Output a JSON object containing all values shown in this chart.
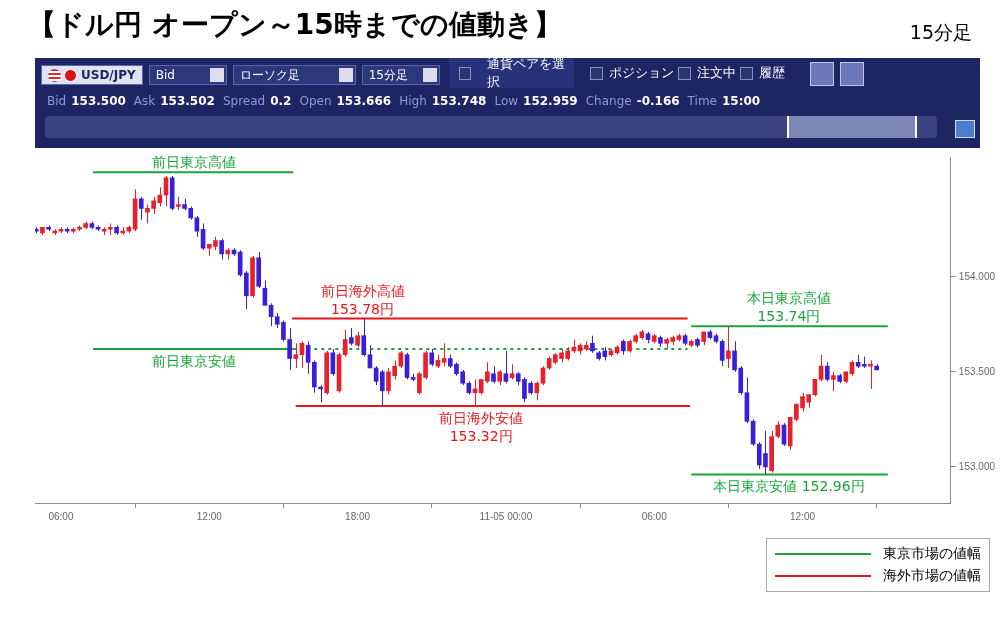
{
  "chart_data": {
    "type": "candlestick",
    "title": "【ドル円 オープン～15時までの値動き】",
    "subtitle": "15分足",
    "x": [
      "--11-04T05:00",
      "--11-04T05:15",
      "--11-04T05:30",
      "--11-04T05:45",
      "--11-04T06:00",
      "--11-04T06:15",
      "--11-04T06:30",
      "--11-04T06:45",
      "--11-04T07:00",
      "--11-04T07:15",
      "--11-04T07:30",
      "--11-04T07:45",
      "--11-04T08:00",
      "--11-04T08:15",
      "--11-04T08:30",
      "--11-04T08:45",
      "--11-04T09:00",
      "--11-04T09:15",
      "--11-04T09:30",
      "--11-04T09:45",
      "--11-04T10:00",
      "--11-04T10:15",
      "--11-04T10:30",
      "--11-04T10:45",
      "--11-04T11:00",
      "--11-04T11:15",
      "--11-04T11:30",
      "--11-04T11:45",
      "--11-04T12:00",
      "--11-04T12:15",
      "--11-04T12:30",
      "--11-04T12:45",
      "--11-04T13:00",
      "--11-04T13:15",
      "--11-04T13:30",
      "--11-04T13:45",
      "--11-04T14:00",
      "--11-04T14:15",
      "--11-04T14:30",
      "--11-04T14:45",
      "--11-04T15:00",
      "--11-04T15:15",
      "--11-04T15:30",
      "--11-04T15:45",
      "--11-04T16:00",
      "--11-04T16:15",
      "--11-04T16:30",
      "--11-04T16:45",
      "--11-04T17:00",
      "--11-04T17:15",
      "--11-04T17:30",
      "--11-04T17:45",
      "--11-04T18:00",
      "--11-04T18:15",
      "--11-04T18:30",
      "--11-04T18:45",
      "--11-04T19:00",
      "--11-04T19:15",
      "--11-04T19:30",
      "--11-04T19:45",
      "--11-04T20:00",
      "--11-04T20:15",
      "--11-04T20:30",
      "--11-04T20:45",
      "--11-04T21:00",
      "--11-04T21:15",
      "--11-04T21:30",
      "--11-04T21:45",
      "--11-04T22:00",
      "--11-04T22:15",
      "--11-04T22:30",
      "--11-04T22:45",
      "--11-04T23:00",
      "--11-04T23:15",
      "--11-04T23:30",
      "--11-04T23:45",
      "--11-05T00:00",
      "--11-05T00:15",
      "--11-05T00:30",
      "--11-05T00:45",
      "--11-05T01:00",
      "--11-05T01:15",
      "--11-05T01:30",
      "--11-05T01:45",
      "--11-05T02:00",
      "--11-05T02:15",
      "--11-05T02:30",
      "--11-05T02:45",
      "--11-05T03:00",
      "--11-05T03:15",
      "--11-05T03:30",
      "--11-05T03:45",
      "--11-05T04:00",
      "--11-05T04:15",
      "--11-05T04:30",
      "--11-05T04:45",
      "--11-05T05:00",
      "--11-05T05:15",
      "--11-05T05:30",
      "--11-05T05:45",
      "--11-05T06:00",
      "--11-05T06:15",
      "--11-05T06:30",
      "--11-05T06:45",
      "--11-05T07:00",
      "--11-05T07:15",
      "--11-05T07:30",
      "--11-05T07:45",
      "--11-05T08:00",
      "--11-05T08:15",
      "--11-05T08:30",
      "--11-05T08:45",
      "--11-05T09:00",
      "--11-05T09:15",
      "--11-05T09:30",
      "--11-05T09:45",
      "--11-05T10:00",
      "--11-05T10:15",
      "--11-05T10:30",
      "--11-05T10:45",
      "--11-05T11:00",
      "--11-05T11:15",
      "--11-05T11:30",
      "--11-05T11:45",
      "--11-05T12:00",
      "--11-05T12:15",
      "--11-05T12:30",
      "--11-05T12:45",
      "--11-05T13:00",
      "--11-05T13:15",
      "--11-05T13:30",
      "--11-05T13:45",
      "--11-05T14:00",
      "--11-05T14:15",
      "--11-05T14:30",
      "--11-05T14:45",
      "--11-05T15:00"
    ],
    "ohlc": [
      [
        154.25,
        154.26,
        154.23,
        154.24
      ],
      [
        154.23,
        154.26,
        154.22,
        154.26
      ],
      [
        154.26,
        154.27,
        154.24,
        154.25
      ],
      [
        154.23,
        154.25,
        154.22,
        154.24
      ],
      [
        154.24,
        154.26,
        154.23,
        154.25
      ],
      [
        154.25,
        154.26,
        154.23,
        154.24
      ],
      [
        154.24,
        154.26,
        154.23,
        154.25
      ],
      [
        154.25,
        154.27,
        154.24,
        154.26
      ],
      [
        154.26,
        154.29,
        154.25,
        154.28
      ],
      [
        154.28,
        154.29,
        154.25,
        154.26
      ],
      [
        154.26,
        154.27,
        154.24,
        154.25
      ],
      [
        154.24,
        154.26,
        154.22,
        154.25
      ],
      [
        154.25,
        154.28,
        154.22,
        154.26
      ],
      [
        154.26,
        154.27,
        154.22,
        154.23
      ],
      [
        154.23,
        154.26,
        154.22,
        154.24
      ],
      [
        154.24,
        154.27,
        154.23,
        154.26
      ],
      [
        154.25,
        154.46,
        154.24,
        154.41
      ],
      [
        154.41,
        154.42,
        154.3,
        154.36
      ],
      [
        154.34,
        154.38,
        154.28,
        154.36
      ],
      [
        154.36,
        154.42,
        154.33,
        154.4
      ],
      [
        154.39,
        154.47,
        154.37,
        154.43
      ],
      [
        154.43,
        154.53,
        154.37,
        154.52
      ],
      [
        154.52,
        154.53,
        154.35,
        154.36
      ],
      [
        154.37,
        154.42,
        154.35,
        154.38
      ],
      [
        154.38,
        154.41,
        154.35,
        154.36
      ],
      [
        154.36,
        154.37,
        154.3,
        154.31
      ],
      [
        154.31,
        154.32,
        154.21,
        154.24
      ],
      [
        154.25,
        154.28,
        154.14,
        154.15
      ],
      [
        154.15,
        154.17,
        154.11,
        154.17
      ],
      [
        154.16,
        154.21,
        154.14,
        154.19
      ],
      [
        154.19,
        154.2,
        154.09,
        154.12
      ],
      [
        154.12,
        154.15,
        154.09,
        154.14
      ],
      [
        154.14,
        154.15,
        154.11,
        154.12
      ],
      [
        154.13,
        154.14,
        154.0,
        154.01
      ],
      [
        154.02,
        154.03,
        153.83,
        153.9
      ],
      [
        153.9,
        154.11,
        153.89,
        154.1
      ],
      [
        154.1,
        154.13,
        153.94,
        153.95
      ],
      [
        153.94,
        153.98,
        153.85,
        153.85
      ],
      [
        153.85,
        153.86,
        153.74,
        153.79
      ],
      [
        153.79,
        153.81,
        153.73,
        153.75
      ],
      [
        153.76,
        153.77,
        153.66,
        153.67
      ],
      [
        153.67,
        153.73,
        153.51,
        153.57
      ],
      [
        153.57,
        153.65,
        153.52,
        153.59
      ],
      [
        153.59,
        153.66,
        153.52,
        153.65
      ],
      [
        153.64,
        153.66,
        153.49,
        153.55
      ],
      [
        153.55,
        153.56,
        153.39,
        153.42
      ],
      [
        153.42,
        153.43,
        153.34,
        153.41
      ],
      [
        153.39,
        153.61,
        153.38,
        153.6
      ],
      [
        153.6,
        153.62,
        153.48,
        153.49
      ],
      [
        153.4,
        153.6,
        153.39,
        153.59
      ],
      [
        153.59,
        153.72,
        153.58,
        153.67
      ],
      [
        153.68,
        153.73,
        153.64,
        153.65
      ],
      [
        153.64,
        153.71,
        153.63,
        153.69
      ],
      [
        153.69,
        153.78,
        153.58,
        153.59
      ],
      [
        153.59,
        153.64,
        153.52,
        153.52
      ],
      [
        153.52,
        153.53,
        153.43,
        153.45
      ],
      [
        153.5,
        153.51,
        153.32,
        153.4
      ],
      [
        153.4,
        153.52,
        153.38,
        153.5
      ],
      [
        153.48,
        153.56,
        153.46,
        153.53
      ],
      [
        153.53,
        153.61,
        153.52,
        153.6
      ],
      [
        153.59,
        153.6,
        153.46,
        153.47
      ],
      [
        153.47,
        153.49,
        153.45,
        153.46
      ],
      [
        153.39,
        153.5,
        153.38,
        153.49
      ],
      [
        153.47,
        153.61,
        153.46,
        153.6
      ],
      [
        153.6,
        153.62,
        153.53,
        153.54
      ],
      [
        153.53,
        153.59,
        153.52,
        153.56
      ],
      [
        153.55,
        153.65,
        153.53,
        153.57
      ],
      [
        153.57,
        153.59,
        153.52,
        153.53
      ],
      [
        153.54,
        153.55,
        153.48,
        153.49
      ],
      [
        153.5,
        153.51,
        153.43,
        153.44
      ],
      [
        153.44,
        153.45,
        153.38,
        153.39
      ],
      [
        153.39,
        153.46,
        153.32,
        153.41
      ],
      [
        153.39,
        153.46,
        153.38,
        153.46
      ],
      [
        153.45,
        153.55,
        153.44,
        153.5
      ],
      [
        153.49,
        153.53,
        153.44,
        153.45
      ],
      [
        153.45,
        153.51,
        153.43,
        153.5
      ],
      [
        153.49,
        153.61,
        153.44,
        153.45
      ],
      [
        153.47,
        153.54,
        153.46,
        153.49
      ],
      [
        153.49,
        153.5,
        153.43,
        153.45
      ],
      [
        153.46,
        153.47,
        153.34,
        153.36
      ],
      [
        153.44,
        153.45,
        153.38,
        153.39
      ],
      [
        153.39,
        153.45,
        153.35,
        153.44
      ],
      [
        153.44,
        153.53,
        153.43,
        153.52
      ],
      [
        153.52,
        153.58,
        153.51,
        153.57
      ],
      [
        153.55,
        153.6,
        153.54,
        153.59
      ],
      [
        153.57,
        153.62,
        153.55,
        153.6
      ],
      [
        153.57,
        153.63,
        153.56,
        153.61
      ],
      [
        153.61,
        153.67,
        153.6,
        153.63
      ],
      [
        153.61,
        153.65,
        153.59,
        153.64
      ],
      [
        153.62,
        153.66,
        153.61,
        153.64
      ],
      [
        153.65,
        153.69,
        153.6,
        153.61
      ],
      [
        153.6,
        153.61,
        153.56,
        153.57
      ],
      [
        153.61,
        153.63,
        153.56,
        153.58
      ],
      [
        153.59,
        153.62,
        153.58,
        153.61
      ],
      [
        153.6,
        153.64,
        153.59,
        153.63
      ],
      [
        153.66,
        153.67,
        153.59,
        153.61
      ],
      [
        153.61,
        153.67,
        153.6,
        153.66
      ],
      [
        153.66,
        153.7,
        153.65,
        153.69
      ],
      [
        153.68,
        153.72,
        153.67,
        153.71
      ],
      [
        153.7,
        153.71,
        153.65,
        153.67
      ],
      [
        153.66,
        153.7,
        153.65,
        153.69
      ],
      [
        153.68,
        153.69,
        153.63,
        153.65
      ],
      [
        153.65,
        153.68,
        153.62,
        153.67
      ],
      [
        153.66,
        153.69,
        153.64,
        153.68
      ],
      [
        153.67,
        153.7,
        153.66,
        153.69
      ],
      [
        153.69,
        153.7,
        153.64,
        153.65
      ],
      [
        153.64,
        153.67,
        153.63,
        153.66
      ],
      [
        153.67,
        153.68,
        153.63,
        153.64
      ],
      [
        153.66,
        153.71,
        153.64,
        153.71
      ],
      [
        153.71,
        153.72,
        153.67,
        153.68
      ],
      [
        153.69,
        153.7,
        153.65,
        153.66
      ],
      [
        153.66,
        153.67,
        153.53,
        153.56
      ],
      [
        153.57,
        153.74,
        153.52,
        153.61
      ],
      [
        153.61,
        153.66,
        153.5,
        153.51
      ],
      [
        153.52,
        153.53,
        153.38,
        153.39
      ],
      [
        153.39,
        153.47,
        153.23,
        153.24
      ],
      [
        153.24,
        153.25,
        153.11,
        153.12
      ],
      [
        153.12,
        153.13,
        152.99,
        153.01
      ],
      [
        153.07,
        153.19,
        152.96,
        153.0
      ],
      [
        152.98,
        153.19,
        152.97,
        153.16
      ],
      [
        153.16,
        153.24,
        153.15,
        153.22
      ],
      [
        153.22,
        153.23,
        153.11,
        153.12
      ],
      [
        153.11,
        153.26,
        153.09,
        153.26
      ],
      [
        153.25,
        153.33,
        153.24,
        153.33
      ],
      [
        153.31,
        153.39,
        153.29,
        153.37
      ],
      [
        153.34,
        153.38,
        153.31,
        153.38
      ],
      [
        153.38,
        153.46,
        153.37,
        153.46
      ],
      [
        153.46,
        153.59,
        153.45,
        153.53
      ],
      [
        153.53,
        153.55,
        153.45,
        153.46
      ],
      [
        153.46,
        153.5,
        153.4,
        153.48
      ],
      [
        153.48,
        153.49,
        153.44,
        153.45
      ],
      [
        153.45,
        153.5,
        153.44,
        153.5
      ],
      [
        153.49,
        153.56,
        153.48,
        153.55
      ],
      [
        153.55,
        153.59,
        153.52,
        153.53
      ],
      [
        153.54,
        153.58,
        153.52,
        153.53
      ],
      [
        153.53,
        153.56,
        153.41,
        153.54
      ],
      [
        153.53,
        153.54,
        153.51,
        153.51
      ]
    ],
    "colors": [
      "#3b1fd8",
      "#e8202a",
      "#3b1fd8",
      "#e8202a",
      "#e8202a",
      "#3b1fd8",
      "#e8202a",
      "#e8202a",
      "#e8202a",
      "#3b1fd8",
      "#3b1fd8",
      "#e8202a",
      "#e8202a",
      "#3b1fd8",
      "#e8202a",
      "#e8202a",
      "#e8202a",
      "#3b1fd8",
      "#e8202a",
      "#e8202a",
      "#e8202a",
      "#e8202a",
      "#3b1fd8",
      "#e8202a",
      "#3b1fd8",
      "#3b1fd8",
      "#3b1fd8",
      "#3b1fd8",
      "#e8202a",
      "#e8202a",
      "#3b1fd8",
      "#e8202a",
      "#3b1fd8",
      "#3b1fd8",
      "#3b1fd8",
      "#e8202a",
      "#3b1fd8",
      "#3b1fd8",
      "#3b1fd8",
      "#3b1fd8",
      "#3b1fd8",
      "#3b1fd8",
      "#e8202a",
      "#e8202a",
      "#3b1fd8",
      "#3b1fd8",
      "#3b1fd8",
      "#e8202a",
      "#3b1fd8",
      "#e8202a",
      "#e8202a",
      "#3b1fd8",
      "#e8202a",
      "#3b1fd8",
      "#3b1fd8",
      "#3b1fd8",
      "#3b1fd8",
      "#e8202a",
      "#e8202a",
      "#e8202a",
      "#3b1fd8",
      "#3b1fd8",
      "#e8202a",
      "#e8202a",
      "#3b1fd8",
      "#e8202a",
      "#e8202a",
      "#3b1fd8",
      "#3b1fd8",
      "#3b1fd8",
      "#3b1fd8",
      "#e8202a",
      "#e8202a",
      "#e8202a",
      "#3b1fd8",
      "#e8202a",
      "#3b1fd8",
      "#e8202a",
      "#3b1fd8",
      "#3b1fd8",
      "#3b1fd8",
      "#e8202a",
      "#e8202a",
      "#e8202a",
      "#e8202a",
      "#e8202a",
      "#e8202a",
      "#e8202a",
      "#e8202a",
      "#e8202a",
      "#3b1fd8",
      "#3b1fd8",
      "#3b1fd8",
      "#e8202a",
      "#e8202a",
      "#3b1fd8",
      "#e8202a",
      "#e8202a",
      "#e8202a",
      "#3b1fd8",
      "#e8202a",
      "#3b1fd8",
      "#e8202a",
      "#e8202a",
      "#e8202a",
      "#3b1fd8",
      "#e8202a",
      "#3b1fd8",
      "#e8202a",
      "#3b1fd8",
      "#3b1fd8",
      "#3b1fd8",
      "#e8202a",
      "#3b1fd8",
      "#3b1fd8",
      "#3b1fd8",
      "#3b1fd8",
      "#3b1fd8",
      "#3b1fd8",
      "#e8202a",
      "#e8202a",
      "#3b1fd8",
      "#e8202a",
      "#e8202a",
      "#e8202a",
      "#e8202a",
      "#e8202a",
      "#e8202a",
      "#3b1fd8",
      "#e8202a",
      "#3b1fd8",
      "#e8202a",
      "#e8202a",
      "#3b1fd8",
      "#3b1fd8",
      "#e8202a",
      "#3b1fd8"
    ],
    "series": [
      {
        "type": "line",
        "name": "東京市場の値幅",
        "color": "#1aa33c",
        "x": [
          "--11-04T07:18",
          "--11-04T15:24"
        ],
        "values": [
          154.55,
          154.55
        ]
      },
      {
        "type": "line",
        "color": "#1aa33c",
        "x": [
          "--11-04T07:18",
          "--11-04T15:24"
        ],
        "values": [
          153.62,
          153.62
        ]
      },
      {
        "type": "line",
        "color": "#1aa33c",
        "line_style": "dotted",
        "x": [
          "--11-04T15:24",
          "--11-05T07:21"
        ],
        "values": [
          153.62,
          153.62
        ]
      },
      {
        "type": "line",
        "color": "#1aa33c",
        "x": [
          "--11-05T07:30",
          "--11-05T15:27"
        ],
        "values": [
          153.74,
          153.74
        ]
      },
      {
        "type": "line",
        "color": "#1aa33c",
        "x": [
          "--11-05T07:30",
          "--11-05T15:27"
        ],
        "values": [
          152.96,
          152.96
        ]
      },
      {
        "type": "line",
        "name": "海外市場の値幅",
        "color": "#e8141c",
        "x": [
          "--11-04T15:21",
          "--11-05T07:21"
        ],
        "values": [
          153.78,
          153.78
        ]
      },
      {
        "type": "line",
        "color": "#e8141c",
        "x": [
          "--11-04T15:30",
          "--11-05T07:27"
        ],
        "values": [
          153.32,
          153.32
        ]
      }
    ],
    "xlim": [
      "--11-04T04:57",
      "--11-05T18:00"
    ],
    "xticks": [
      {
        "value": "--11-04T06:00",
        "label": "06:00"
      },
      {
        "value": "--11-04T12:00",
        "label": "12:00"
      },
      {
        "value": "--11-04T18:00",
        "label": "18:00"
      },
      {
        "value": "--11-05T00:00",
        "label": "11-05 00:00"
      },
      {
        "value": "--11-05T06:00",
        "label": "06:00"
      },
      {
        "value": "--11-05T12:00",
        "label": "12:00"
      }
    ],
    "ylim": [
      152.81,
      154.63
    ],
    "yticks": [
      {
        "value": 153.0,
        "label": "153.000"
      },
      {
        "value": 153.5,
        "label": "153.500"
      },
      {
        "value": 154.0,
        "label": "154.000"
      }
    ],
    "marker": "none",
    "legend": "bottom right",
    "annotations": [
      "USD/JPY",
      "Bid",
      "ローソク足",
      "15分足",
      "通貨ペアを選択",
      "ポジション",
      "注文中",
      "履歴",
      "Bid",
      "153.500",
      "Ask",
      "153.502",
      "Spread",
      "0.2",
      "Open",
      "153.666",
      "High",
      "153.748",
      "Low",
      "152.959",
      "Change",
      "-0.166",
      "Time",
      "15:00",
      {
        "text": "前日東京高値",
        "x": "--11-04T11:24",
        "y": 154.55
      },
      {
        "text": "前日東京安値",
        "x": "--11-04T11:24",
        "y": 153.62
      },
      {
        "text": "前日海外高値\n153.78円",
        "x": "--11-04T18:12",
        "y": 153.78
      },
      {
        "text": "前日海外安値\n153.32円",
        "x": "--11-04T23:00",
        "y": 153.32
      },
      {
        "text": "本日東京高値\n153.74円",
        "x": "--11-05T11:27",
        "y": 153.74
      },
      {
        "text": "本日東京安値 152.96円",
        "x": "--11-05T11:27",
        "y": 152.96
      }
    ]
  }
}
